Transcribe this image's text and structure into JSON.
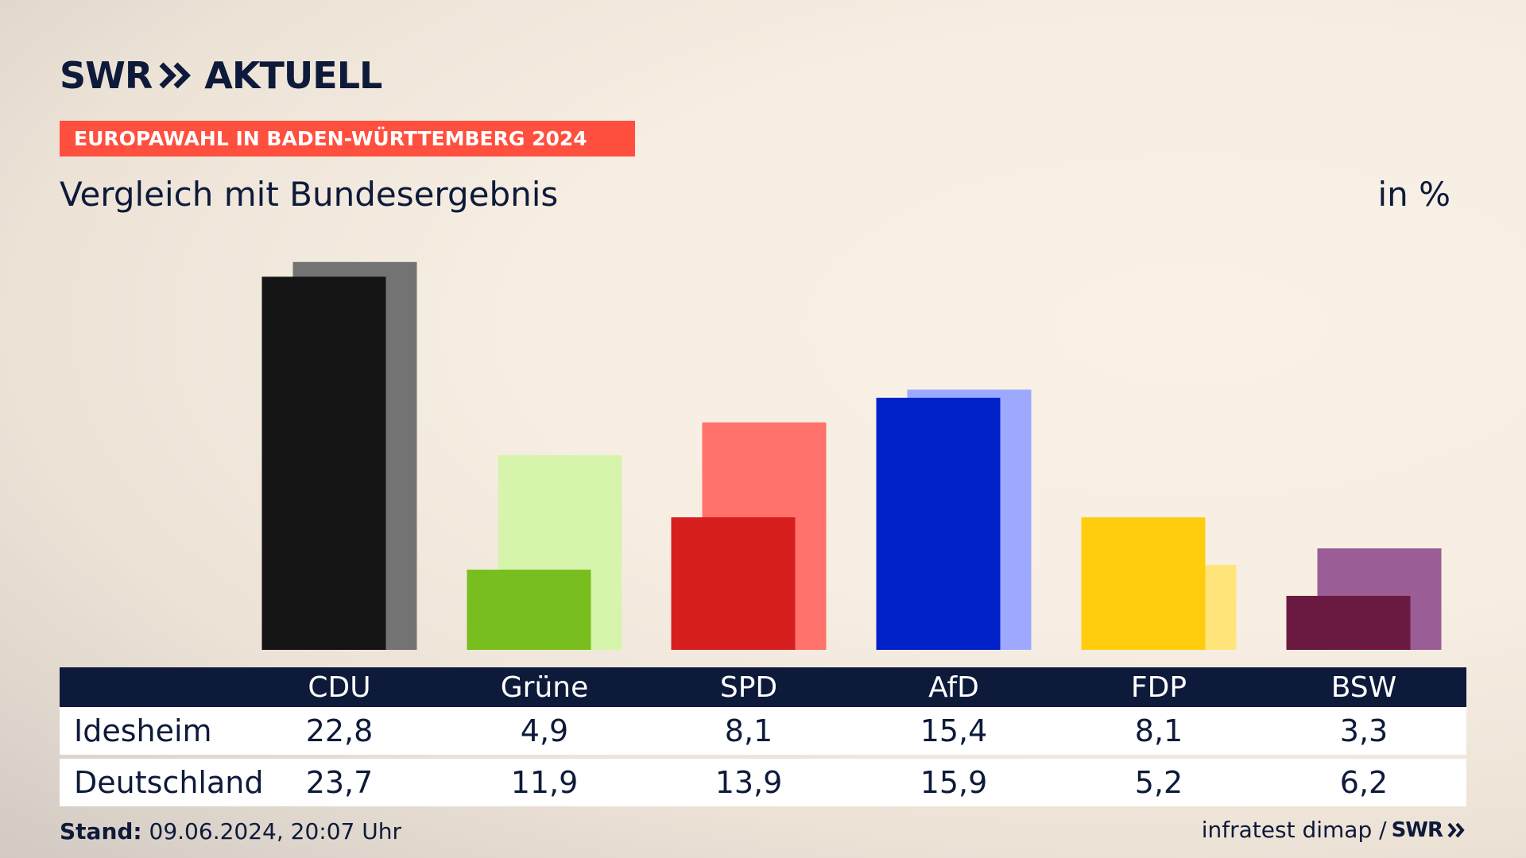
{
  "brand": {
    "logo_swr": "SWR",
    "logo_aktuell": "AKTUELL",
    "arrows_icon": "double-chevron-right-icon"
  },
  "banner": "EUROPAWAHL IN BADEN-WÜRTTEMBERG 2024",
  "subtitle": "Vergleich mit Bundesergebnis",
  "unit": "in %",
  "table": {
    "row_labels": [
      "Idesheim",
      "Deutschland"
    ]
  },
  "footer": {
    "stand_label": "Stand:",
    "stand_value": "09.06.2024, 20:07 Uhr",
    "source": "infratest dimap /",
    "source_logo": "SWR"
  },
  "chart_data": {
    "type": "bar",
    "categories": [
      "CDU",
      "Grüne",
      "SPD",
      "AfD",
      "FDP",
      "BSW"
    ],
    "series": [
      {
        "name": "Idesheim",
        "values": [
          22.8,
          4.9,
          8.1,
          15.4,
          8.1,
          3.3
        ],
        "display": [
          "22,8",
          "4,9",
          "8,1",
          "15,4",
          "8,1",
          "3,3"
        ]
      },
      {
        "name": "Deutschland",
        "values": [
          23.7,
          11.9,
          13.9,
          15.9,
          5.2,
          6.2
        ],
        "display": [
          "23,7",
          "11,9",
          "13,9",
          "15,9",
          "5,2",
          "6,2"
        ]
      }
    ],
    "colors": {
      "front": [
        "#141414",
        "#78be1e",
        "#d71f1f",
        "#0021c8",
        "#ffcd0e",
        "#6a1a40"
      ],
      "back": [
        "#737373",
        "#d7f4ad",
        "#ff726b",
        "#9ca9ff",
        "#ffe47a",
        "#9a5d95"
      ]
    },
    "ylim": [
      0,
      25
    ]
  }
}
